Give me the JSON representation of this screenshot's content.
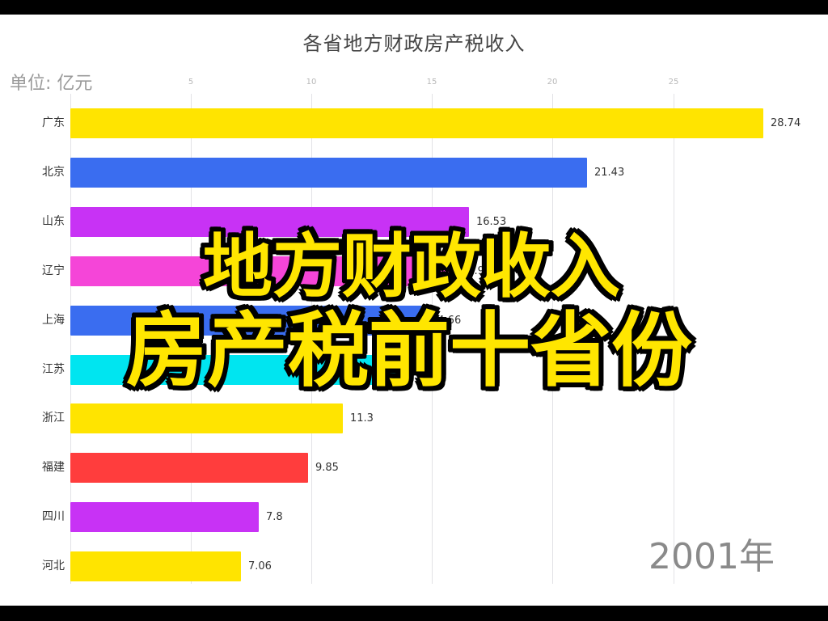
{
  "chart_data": {
    "type": "bar",
    "orientation": "horizontal",
    "title": "各省地方财政房产税收入",
    "unit": "单位: 亿元",
    "period_label": "2001年",
    "categories": [
      "广东",
      "北京",
      "山东",
      "辽宁",
      "上海",
      "江苏",
      "浙江",
      "福建",
      "四川",
      "河北"
    ],
    "values": [
      28.74,
      21.43,
      16.53,
      15.9,
      14.66,
      13.5,
      11.3,
      9.85,
      7.8,
      7.06
    ],
    "value_labels": [
      "28.74",
      "21.43",
      "16.53",
      "15.9",
      "14.66",
      "13.5",
      "11.3",
      "9.85",
      "7.8",
      "7.06"
    ],
    "colors": [
      "#ffe400",
      "#3a6df0",
      "#c832f5",
      "#f545d8",
      "#3a6df0",
      "#00e5f0",
      "#ffe400",
      "#ff3d3d",
      "#c832f5",
      "#ffe400"
    ],
    "x_ticks": [
      5,
      10,
      15,
      20,
      25
    ],
    "xlim": [
      0,
      30
    ],
    "grid": true,
    "legend": "none"
  },
  "overlay": {
    "line1": "地方财政收入",
    "line2": "房产税前十省份",
    "color": "#ffe600",
    "outline": "#000000"
  }
}
